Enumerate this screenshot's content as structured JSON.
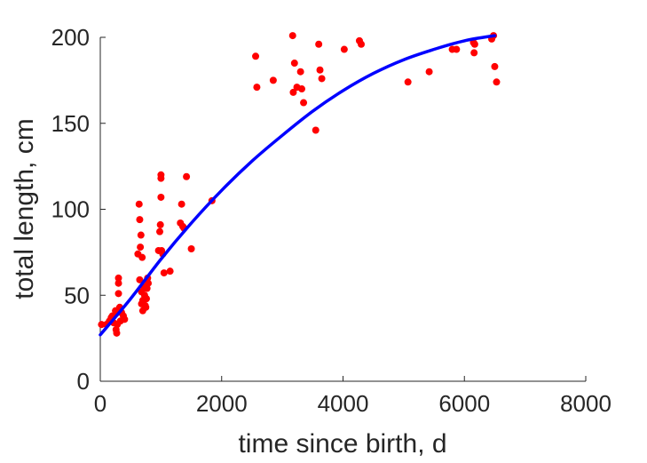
{
  "chart_data": {
    "type": "scatter",
    "xlabel": "time since birth, d",
    "ylabel": "total length, cm",
    "xlim": [
      0,
      8000
    ],
    "ylim": [
      0,
      200
    ],
    "xticks": [
      0,
      2000,
      4000,
      6000,
      8000
    ],
    "yticks": [
      0,
      50,
      100,
      150,
      200
    ],
    "xtick_labels": [
      "0",
      "2000",
      "4000",
      "6000",
      "8000"
    ],
    "ytick_labels": [
      "0",
      "50",
      "100",
      "150",
      "200"
    ],
    "box": "left-bottom axes only",
    "series": [
      {
        "kind": "points",
        "color": "#ff0000",
        "points": [
          [
            20,
            33
          ],
          [
            100,
            33
          ],
          [
            150,
            35
          ],
          [
            180,
            37
          ],
          [
            200,
            38
          ],
          [
            220,
            34
          ],
          [
            250,
            41
          ],
          [
            260,
            30
          ],
          [
            270,
            28
          ],
          [
            280,
            33
          ],
          [
            290,
            40
          ],
          [
            300,
            57
          ],
          [
            300,
            60
          ],
          [
            300,
            51
          ],
          [
            320,
            43
          ],
          [
            330,
            35
          ],
          [
            350,
            40
          ],
          [
            380,
            38
          ],
          [
            400,
            36
          ],
          [
            620,
            74
          ],
          [
            640,
            103
          ],
          [
            650,
            94
          ],
          [
            660,
            78
          ],
          [
            670,
            85
          ],
          [
            650,
            59
          ],
          [
            680,
            45
          ],
          [
            680,
            52
          ],
          [
            690,
            72
          ],
          [
            700,
            47
          ],
          [
            700,
            41
          ],
          [
            720,
            55
          ],
          [
            730,
            50
          ],
          [
            740,
            44
          ],
          [
            750,
            43
          ],
          [
            760,
            48
          ],
          [
            770,
            54
          ],
          [
            780,
            60
          ],
          [
            790,
            57
          ],
          [
            960,
            76
          ],
          [
            980,
            87
          ],
          [
            990,
            91
          ],
          [
            1000,
            120
          ],
          [
            1000,
            118
          ],
          [
            1000,
            107
          ],
          [
            1010,
            76
          ],
          [
            1030,
            74
          ],
          [
            1050,
            63
          ],
          [
            1150,
            64
          ],
          [
            1320,
            92
          ],
          [
            1340,
            103
          ],
          [
            1360,
            90
          ],
          [
            1380,
            89
          ],
          [
            1420,
            119
          ],
          [
            1500,
            77
          ],
          [
            1840,
            105
          ],
          [
            2560,
            189
          ],
          [
            2580,
            171
          ],
          [
            2850,
            175
          ],
          [
            3170,
            201
          ],
          [
            3180,
            168
          ],
          [
            3200,
            185
          ],
          [
            3240,
            171
          ],
          [
            3300,
            180
          ],
          [
            3320,
            170
          ],
          [
            3350,
            162
          ],
          [
            3550,
            146
          ],
          [
            3600,
            196
          ],
          [
            3620,
            181
          ],
          [
            3650,
            176
          ],
          [
            4020,
            193
          ],
          [
            4270,
            198
          ],
          [
            4300,
            196
          ],
          [
            5070,
            174
          ],
          [
            5420,
            180
          ],
          [
            5800,
            193
          ],
          [
            5870,
            193
          ],
          [
            6150,
            197
          ],
          [
            6160,
            191
          ],
          [
            6170,
            196
          ],
          [
            6450,
            199
          ],
          [
            6480,
            201
          ],
          [
            6500,
            183
          ],
          [
            6530,
            174
          ]
        ]
      },
      {
        "kind": "fit-curve",
        "color": "#0000ff",
        "points": [
          [
            0,
            27
          ],
          [
            500,
            48
          ],
          [
            1000,
            71
          ],
          [
            1500,
            92
          ],
          [
            2000,
            111
          ],
          [
            2500,
            128
          ],
          [
            3000,
            143
          ],
          [
            3500,
            157
          ],
          [
            4000,
            169
          ],
          [
            4500,
            179
          ],
          [
            5000,
            187
          ],
          [
            5500,
            193
          ],
          [
            6000,
            198
          ],
          [
            6500,
            201
          ]
        ]
      }
    ]
  }
}
